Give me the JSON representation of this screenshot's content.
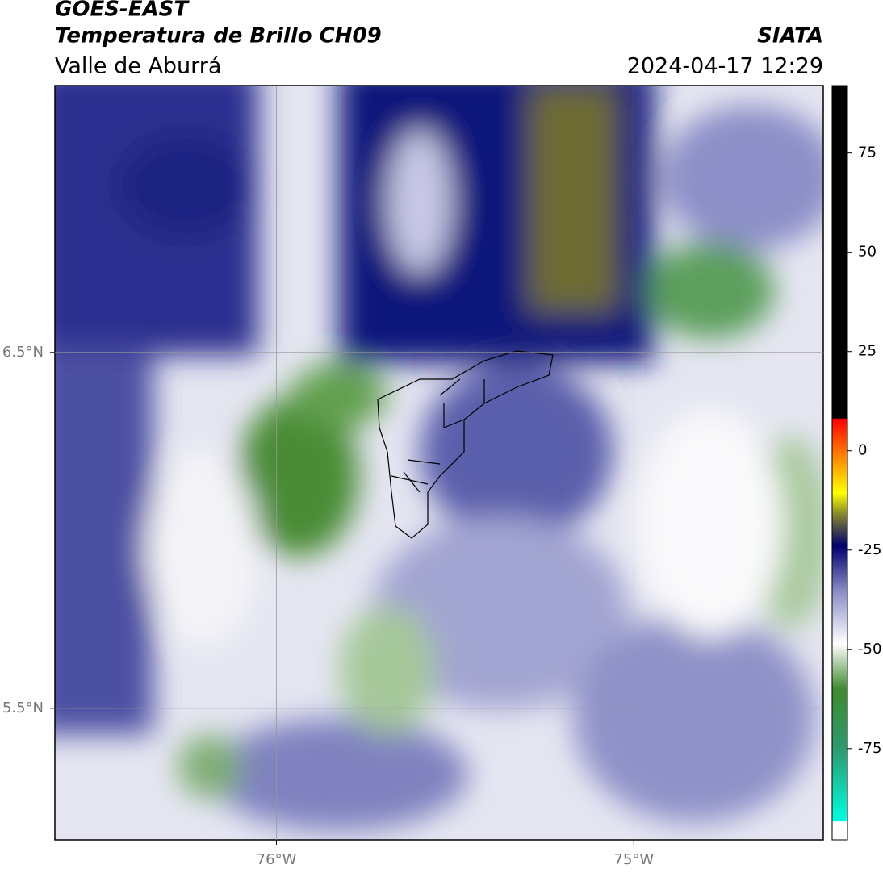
{
  "header": {
    "title": "GOES-EAST",
    "subtitle": "Temperatura de Brillo CH09",
    "region": "Valle de Aburrá",
    "agency": "SIATA",
    "timestamp": "2024-04-17 12:29"
  },
  "map": {
    "xlim": [
      -76.62,
      -74.47
    ],
    "ylim": [
      5.13,
      7.25
    ],
    "xticks": [
      {
        "value": -76,
        "label": "76°W"
      },
      {
        "value": -75,
        "label": "75°W"
      }
    ],
    "yticks": [
      {
        "value": 6.5,
        "label": "6.5°N"
      },
      {
        "value": 5.5,
        "label": "5.5°N"
      }
    ],
    "grid": true
  },
  "colorbar": {
    "lim": [
      -98,
      92
    ],
    "ticks": [
      75,
      50,
      25,
      0,
      -25,
      -50,
      -75
    ]
  }
}
